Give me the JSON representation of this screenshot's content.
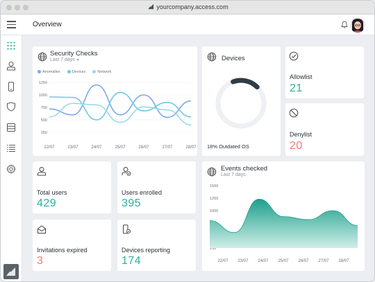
{
  "browser": {
    "url": "yourcompany.access.com"
  },
  "header": {
    "title": "Overview"
  },
  "sidebar": {
    "items": [
      {
        "name": "apps-icon"
      },
      {
        "name": "user-icon"
      },
      {
        "name": "device-icon"
      },
      {
        "name": "shield-icon"
      },
      {
        "name": "server-icon"
      },
      {
        "name": "list-icon"
      },
      {
        "name": "settings-icon"
      }
    ]
  },
  "security": {
    "title": "Security Checks",
    "range": "Last 7 days",
    "legend": [
      "Anomalies",
      "Devices",
      "Network"
    ]
  },
  "devices": {
    "title": "Devices",
    "caption": "18% Outdated OS",
    "percent": 18
  },
  "allowlist": {
    "label": "Allowlist",
    "value": "21"
  },
  "denylist": {
    "label": "Denylist",
    "value": "20"
  },
  "stats": {
    "total_users": {
      "label": "Total users",
      "value": "429"
    },
    "users_enrolled": {
      "label": "Users enrolled",
      "value": "395"
    },
    "invitations_expired": {
      "label": "Invitations expired",
      "value": "3"
    },
    "devices_reporting": {
      "label": "Devices reporting",
      "value": "174"
    }
  },
  "events": {
    "title": "Events checked",
    "range": "Last 7 days"
  },
  "colors": {
    "teal": "#2bb09e",
    "coral": "#ef7c6e",
    "anomalies": "#7fa8e6",
    "devices": "#6fc9e0",
    "network": "#9bd8ec"
  },
  "chart_data": [
    {
      "type": "line",
      "title": "Security Checks",
      "x": [
        "22/07",
        "23/07",
        "24/07",
        "25/07",
        "26/07",
        "27/07",
        "28/07"
      ],
      "yticks": [
        1250,
        1000,
        750,
        500,
        250
      ],
      "ylim": [
        250,
        1250
      ],
      "legend": "top-left",
      "series": [
        {
          "name": "Anomalies",
          "values": [
            720,
            600,
            1200,
            600,
            1000,
            550,
            880
          ]
        },
        {
          "name": "Devices",
          "values": [
            960,
            950,
            500,
            1050,
            680,
            850,
            560
          ]
        },
        {
          "name": "Network",
          "values": [
            560,
            830,
            800,
            450,
            760,
            700,
            400
          ]
        }
      ]
    },
    {
      "type": "area",
      "title": "Events checked",
      "x": [
        "22/07",
        "23/07",
        "24/07",
        "25/07",
        "26/07",
        "27/07",
        "28/07"
      ],
      "yticks": [
        1500,
        1250,
        1000,
        750,
        500,
        250
      ],
      "ylim": [
        250,
        1500
      ],
      "series": [
        {
          "name": "",
          "values": [
            800,
            560,
            1230,
            880,
            820,
            1000,
            700
          ]
        }
      ]
    }
  ]
}
